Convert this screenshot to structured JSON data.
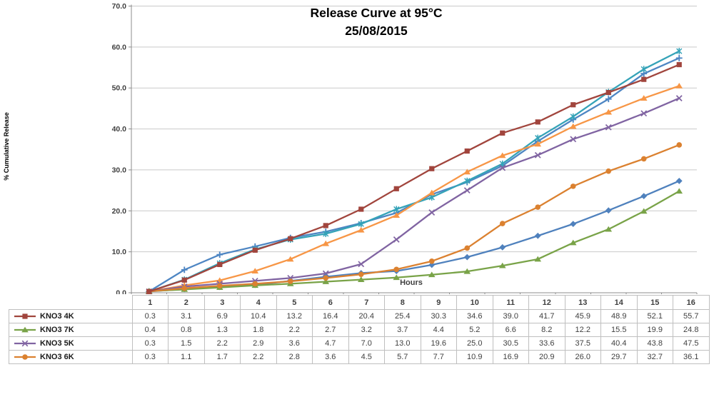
{
  "title": {
    "line1": "Release Curve at 95°C",
    "line2": "25/08/2015"
  },
  "y_axis": {
    "label": "% Cumulative Release",
    "ticks": [
      "0.0",
      "10.0",
      "20.0",
      "30.0",
      "40.0",
      "50.0",
      "60.0",
      "70.0"
    ],
    "min": 0,
    "max": 70,
    "step": 10
  },
  "x_axis": {
    "label": "Hours",
    "categories": [
      "1",
      "2",
      "3",
      "4",
      "5",
      "6",
      "7",
      "8",
      "9",
      "10",
      "11",
      "12",
      "13",
      "14",
      "15",
      "16"
    ]
  },
  "chart_data": {
    "type": "line",
    "title": "Release Curve at 95°C 25/08/2015",
    "xlabel": "Hours",
    "ylabel": "% Cumulative Release",
    "ylim": [
      0,
      70
    ],
    "grid": "horizontal",
    "legend_position": "table-left",
    "x": [
      1,
      2,
      3,
      4,
      5,
      6,
      7,
      8,
      9,
      10,
      11,
      12,
      13,
      14,
      15,
      16
    ],
    "series": [
      {
        "name": "KNO3 4K",
        "color": "#A1453D",
        "marker": "square",
        "in_table": true,
        "values": [
          0.3,
          3.1,
          6.9,
          10.4,
          13.2,
          16.4,
          20.4,
          25.4,
          30.3,
          34.6,
          39.0,
          41.7,
          45.9,
          48.9,
          52.1,
          55.7
        ]
      },
      {
        "name": "KNO3 7K",
        "color": "#79A348",
        "marker": "triangle",
        "in_table": true,
        "values": [
          0.4,
          0.8,
          1.3,
          1.8,
          2.2,
          2.7,
          3.2,
          3.7,
          4.4,
          5.2,
          6.6,
          8.2,
          12.2,
          15.5,
          19.9,
          24.8
        ]
      },
      {
        "name": "KNO3 5K",
        "color": "#8064A2",
        "marker": "x",
        "in_table": true,
        "values": [
          0.3,
          1.5,
          2.2,
          2.9,
          3.6,
          4.7,
          7.0,
          13.0,
          19.6,
          25.0,
          30.5,
          33.6,
          37.5,
          40.4,
          43.8,
          47.5
        ]
      },
      {
        "name": "KNO3 6K",
        "color": "#DB8130",
        "marker": "circle",
        "in_table": true,
        "values": [
          0.3,
          1.1,
          1.7,
          2.2,
          2.8,
          3.6,
          4.5,
          5.7,
          7.7,
          10.9,
          16.9,
          20.9,
          26.0,
          29.7,
          32.7,
          36.1
        ]
      },
      {
        "name": "unlabeled-blue-diamond",
        "color": "#4F81BD",
        "marker": "diamond",
        "in_table": false,
        "values": [
          0.3,
          0.9,
          1.4,
          1.9,
          2.9,
          3.9,
          4.8,
          5.3,
          6.8,
          8.7,
          11.1,
          13.9,
          16.8,
          20.1,
          23.6,
          27.3
        ]
      },
      {
        "name": "unlabeled-teal-asterisk",
        "color": "#35A3B8",
        "marker": "asterisk",
        "in_table": false,
        "values": [
          0.3,
          3.2,
          7.2,
          10.6,
          13.0,
          14.4,
          16.8,
          20.4,
          23.3,
          27.3,
          31.5,
          37.8,
          43.0,
          49.0,
          54.6,
          59.0
        ]
      },
      {
        "name": "unlabeled-blue-plus",
        "color": "#4E86C3",
        "marker": "plus",
        "in_table": false,
        "values": [
          0.3,
          5.6,
          9.3,
          11.3,
          13.4,
          14.9,
          17.0,
          19.5,
          24.0,
          27.0,
          31.0,
          37.0,
          42.3,
          47.3,
          53.5,
          57.3
        ]
      },
      {
        "name": "unlabeled-orange-triangle",
        "color": "#F79646",
        "marker": "triangle",
        "in_table": false,
        "values": [
          0.3,
          1.8,
          3.0,
          5.3,
          8.2,
          12.0,
          15.3,
          18.9,
          24.4,
          29.5,
          33.5,
          36.3,
          40.6,
          44.1,
          47.5,
          50.5
        ]
      }
    ]
  },
  "table": {
    "row_labels": [
      "KNO3 4K",
      "KNO3 7K",
      "KNO3 5K",
      "KNO3 6K"
    ]
  },
  "colors": {
    "grid": "#C9C9C9",
    "axis": "#8C8C8C",
    "table_border": "#BFBFBF",
    "text": "#3F3F3F"
  }
}
